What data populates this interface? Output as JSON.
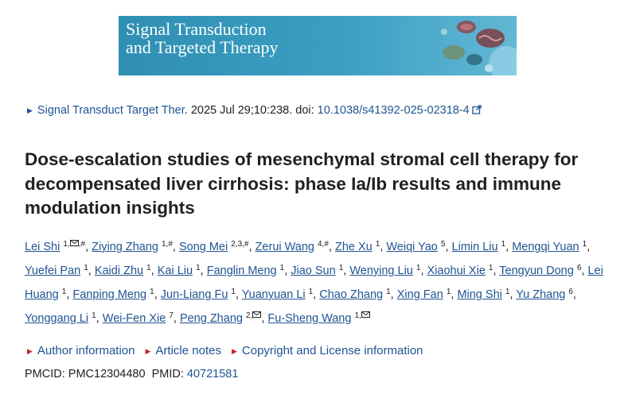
{
  "banner": {
    "title": "Signal Transduction\nand Targeted Therapy",
    "colors": {
      "background": "#3b9fc2",
      "text": "#ffffff"
    }
  },
  "citation": {
    "journal": "Signal Transduct Target Ther",
    "date_volume": ". 2025 Jul 29;10:238. doi: ",
    "doi": "10.1038/s41392-025-02318-4"
  },
  "article": {
    "title": "Dose-escalation studies of mesenchymal stromal cell therapy for decompensated liver cirrhosis: phase Ia/Ib results and immune modulation insights"
  },
  "authors": [
    {
      "name": "Lei Shi",
      "sup": "1,",
      "mail": true,
      "sup2": ",#"
    },
    {
      "name": "Ziying Zhang",
      "sup": "1,#"
    },
    {
      "name": "Song Mei",
      "sup": "2,3,#"
    },
    {
      "name": "Zerui Wang",
      "sup": "4,#"
    },
    {
      "name": "Zhe Xu",
      "sup": "1"
    },
    {
      "name": "Weiqi Yao",
      "sup": "5"
    },
    {
      "name": "Limin Liu",
      "sup": "1"
    },
    {
      "name": "Mengqi Yuan",
      "sup": "1"
    },
    {
      "name": "Yuefei Pan",
      "sup": "1"
    },
    {
      "name": "Kaidi Zhu",
      "sup": "1"
    },
    {
      "name": "Kai Liu",
      "sup": "1"
    },
    {
      "name": "Fanglin Meng",
      "sup": "1"
    },
    {
      "name": "Jiao Sun",
      "sup": "1"
    },
    {
      "name": "Wenying Liu",
      "sup": "1"
    },
    {
      "name": "Xiaohui Xie",
      "sup": "1"
    },
    {
      "name": "Tengyun Dong",
      "sup": "6"
    },
    {
      "name": "Lei Huang",
      "sup": "1"
    },
    {
      "name": "Fanping Meng",
      "sup": "1"
    },
    {
      "name": "Jun-Liang Fu",
      "sup": "1"
    },
    {
      "name": "Yuanyuan Li",
      "sup": "1"
    },
    {
      "name": "Chao Zhang",
      "sup": "1"
    },
    {
      "name": "Xing Fan",
      "sup": "1"
    },
    {
      "name": "Ming Shi",
      "sup": "1"
    },
    {
      "name": "Yu Zhang",
      "sup": "6"
    },
    {
      "name": "Yonggang Li",
      "sup": "1"
    },
    {
      "name": "Wei-Fen Xie",
      "sup": "7"
    },
    {
      "name": "Peng Zhang",
      "sup": "2,",
      "mail": true
    },
    {
      "name": "Fu-Sheng Wang",
      "sup": "1,",
      "mail": true
    }
  ],
  "info_links": [
    "Author information",
    "Article notes",
    "Copyright and License information"
  ],
  "ids": {
    "pmcid_label": "PMCID: ",
    "pmcid": "PMC12304480",
    "pmid_label": "PMID: ",
    "pmid": "40721581"
  },
  "colors": {
    "link": "#205493",
    "accent_triangle": "#c1272d"
  }
}
